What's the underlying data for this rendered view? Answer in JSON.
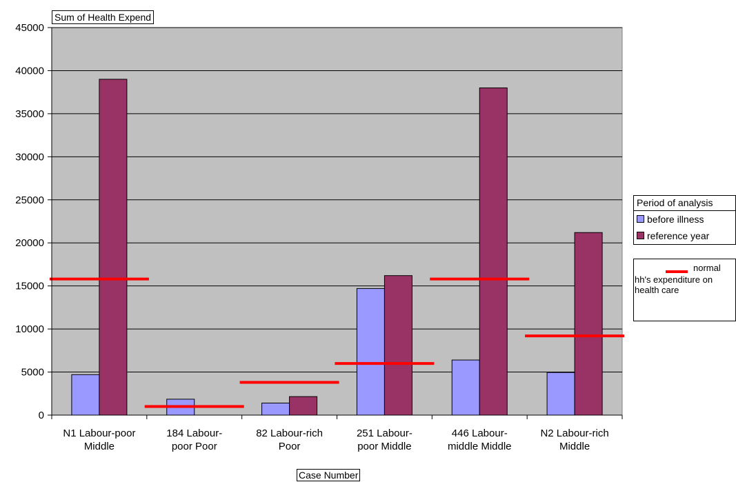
{
  "chart_data": {
    "type": "bar",
    "categories": [
      "N1 Labour-poor Middle",
      "184 Labour-poor Poor",
      "82 Labour-rich Poor",
      "251 Labour-poor Middle",
      "446 Labour-middle Middle",
      "N2 Labour-rich Middle"
    ],
    "category_lines": [
      [
        "N1 Labour-poor",
        "Middle"
      ],
      [
        "184 Labour-",
        "poor Poor"
      ],
      [
        "82 Labour-rich",
        "Poor"
      ],
      [
        "251 Labour-",
        "poor Middle"
      ],
      [
        "446 Labour-",
        "middle Middle"
      ],
      [
        "N2 Labour-rich",
        "Middle"
      ]
    ],
    "series": [
      {
        "name": "before illness",
        "values": [
          4700,
          1850,
          1400,
          14700,
          6400,
          4950
        ],
        "color": "#9999ff"
      },
      {
        "name": "reference year",
        "values": [
          39000,
          0,
          2150,
          16200,
          38000,
          21200
        ],
        "color": "#993366"
      }
    ],
    "normal_line": {
      "name": "normal hh's expenditure on health care",
      "values": [
        15800,
        1000,
        3800,
        6000,
        15800,
        9200
      ],
      "color": "#ff0000"
    },
    "ylabel": "Sum of Health Expend",
    "xlabel": "Case Number",
    "ylim": [
      0,
      45000
    ],
    "yticks": [
      0,
      5000,
      10000,
      15000,
      20000,
      25000,
      30000,
      35000,
      40000,
      45000
    ],
    "plot_background": "#c0c0c0",
    "grid": true,
    "legend_position": "right"
  },
  "legend": {
    "title": "Period of analysis",
    "items": [
      "before illness",
      "reference year"
    ]
  },
  "legend2": {
    "label": "normal",
    "text": "hh's expenditure on health care"
  }
}
